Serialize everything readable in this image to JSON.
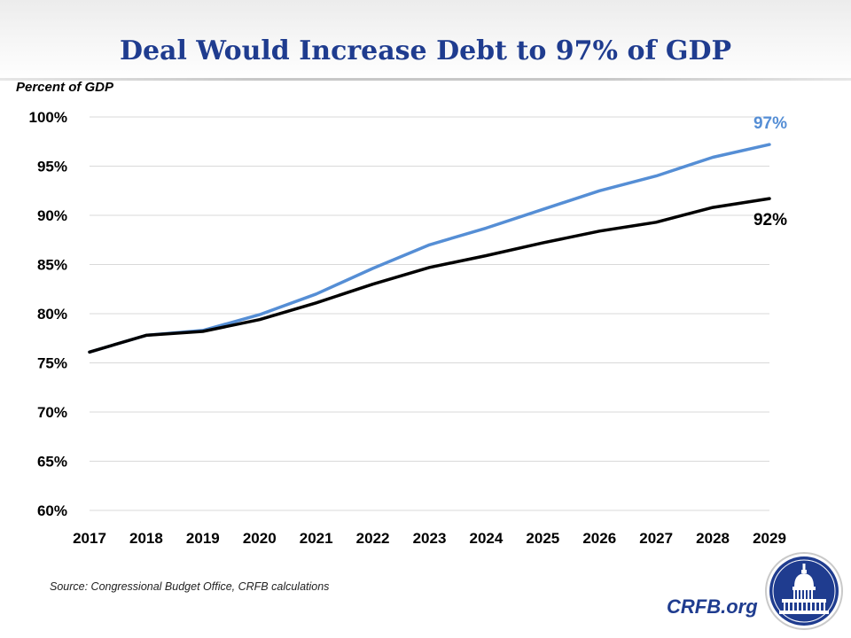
{
  "header": {
    "title": "Deal Would Increase Debt to 97% of GDP",
    "unit_label": "Percent of GDP"
  },
  "footer": {
    "source": "Source: Congressional Budget Office, CRFB calculations",
    "brand": "CRFB.org"
  },
  "colors": {
    "title": "#1f3c8f",
    "deal_series": "#558ed5",
    "baseline_series": "#000000",
    "gridline": "#d9d9d9",
    "seal": "#1f3c8f"
  },
  "chart_data": {
    "type": "line",
    "title": "Deal Would Increase Debt to 97% of GDP",
    "ylabel": "Percent of GDP",
    "xlabel": "",
    "categories": [
      "2017",
      "2018",
      "2019",
      "2020",
      "2021",
      "2022",
      "2023",
      "2024",
      "2025",
      "2026",
      "2027",
      "2028",
      "2029"
    ],
    "ylim": [
      60,
      100
    ],
    "yticks": [
      60,
      65,
      70,
      75,
      80,
      85,
      90,
      95,
      100
    ],
    "ytick_labels": [
      "60%",
      "65%",
      "70%",
      "75%",
      "80%",
      "85%",
      "90%",
      "95%",
      "100%"
    ],
    "grid": true,
    "series": [
      {
        "color": "#558ed5",
        "values": [
          76.1,
          77.8,
          78.3,
          79.9,
          82.0,
          84.6,
          87.0,
          88.7,
          90.6,
          92.5,
          94.0,
          95.9,
          97.2
        ],
        "end_label": "97%"
      },
      {
        "color": "#000000",
        "values": [
          76.1,
          77.8,
          78.2,
          79.4,
          81.1,
          83.0,
          84.7,
          85.9,
          87.2,
          88.4,
          89.3,
          90.8,
          91.7
        ],
        "end_label": "92%"
      }
    ]
  }
}
